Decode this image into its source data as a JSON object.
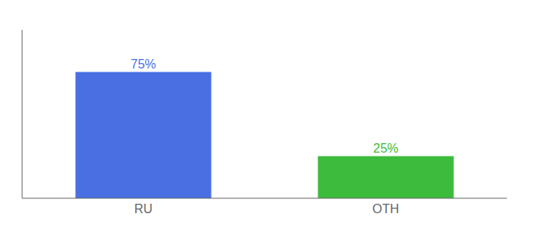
{
  "chart_data": {
    "type": "bar",
    "categories": [
      "RU",
      "OTH"
    ],
    "values": [
      75,
      25
    ],
    "value_labels": [
      "75%",
      "25%"
    ],
    "data_labels": true,
    "colors": [
      "#4a6fe3",
      "#3dbb3d"
    ],
    "ylim": [
      0,
      100
    ],
    "grid": false,
    "tick_labels": "x"
  }
}
